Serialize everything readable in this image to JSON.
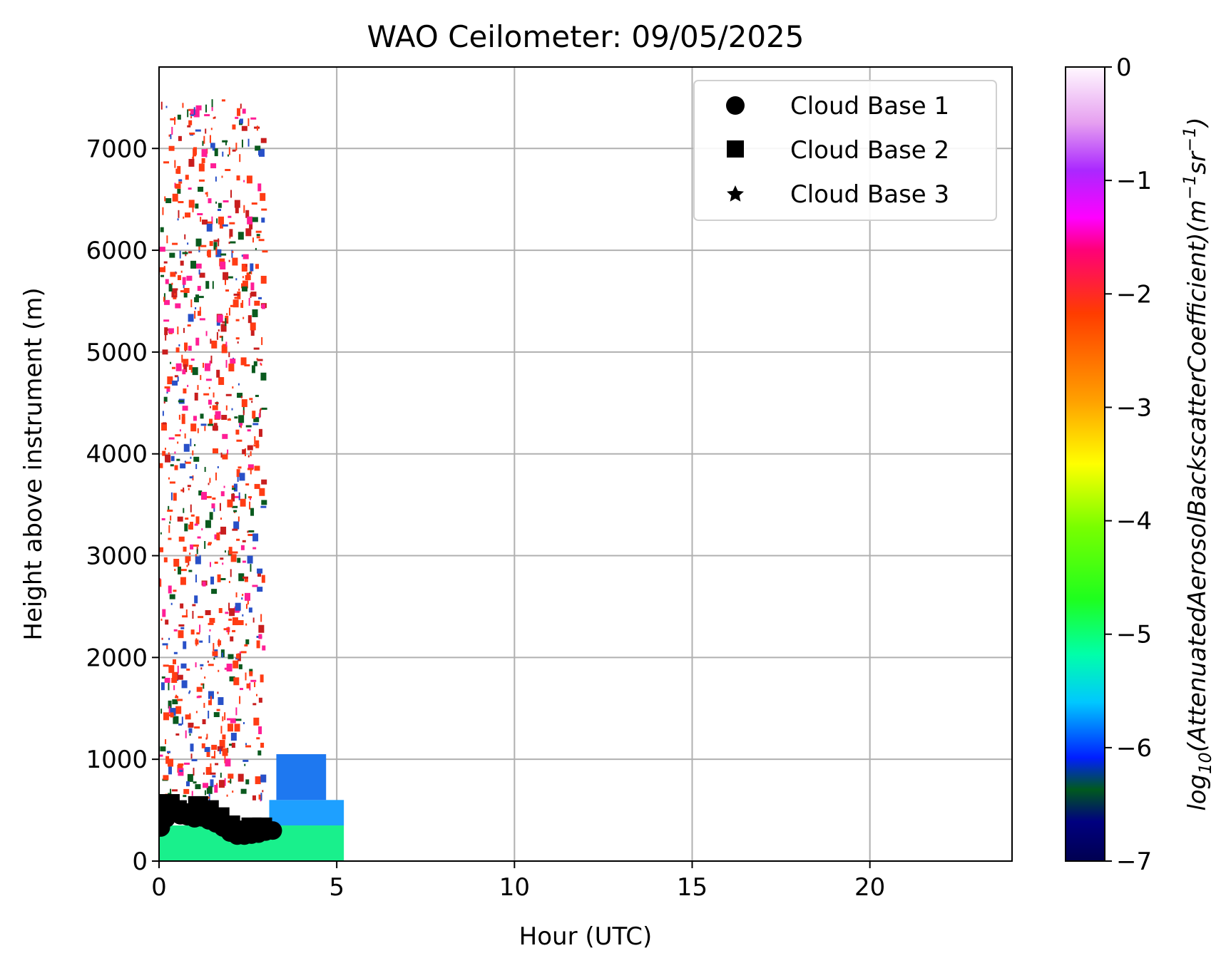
{
  "chart_data": {
    "type": "heatmap",
    "title": "WAO Ceilometer: 09/05/2025",
    "xlabel": "Hour (UTC)",
    "ylabel": "Height above instrument (m)",
    "xlim": [
      0,
      24
    ],
    "ylim": [
      0,
      7800
    ],
    "x_ticks": [
      0,
      5,
      10,
      15,
      20
    ],
    "y_ticks": [
      0,
      1000,
      2000,
      3000,
      4000,
      5000,
      6000,
      7000
    ],
    "grid": true,
    "legend": {
      "placement": "top-right",
      "entries": [
        {
          "label": "Cloud Base 1",
          "marker": "circle"
        },
        {
          "label": "Cloud Base 2",
          "marker": "square"
        },
        {
          "label": "Cloud Base 3",
          "marker": "star"
        }
      ]
    },
    "colorbar": {
      "label_base": "log",
      "label_sub": "10",
      "label_main": "(AttenuatedAerosolBackscatterCoefficient)(m",
      "label_sup1": "−1",
      "label_mid": "sr",
      "label_sup2": "−1",
      "label_end": ")",
      "range": [
        -7,
        0
      ],
      "ticks": [
        0,
        -1,
        -2,
        -3,
        -4,
        -5,
        -6,
        -7
      ],
      "tick_labels": [
        "0",
        "−1",
        "−2",
        "−3",
        "−4",
        "−5",
        "−6",
        "−7"
      ]
    },
    "backscatter_regions": [
      {
        "description": "near-surface aerosol",
        "x_range": [
          0,
          5.2
        ],
        "height_range": [
          0,
          350
        ],
        "log10_value": -5.0
      },
      {
        "description": "boundary layer",
        "x_range": [
          3.1,
          5.2
        ],
        "height_range": [
          350,
          600
        ],
        "log10_value": -5.8
      },
      {
        "description": "elevated aerosol",
        "x_range": [
          3.3,
          4.7
        ],
        "height_range": [
          600,
          1050
        ],
        "log10_value": -6.1
      },
      {
        "description": "noise above cloud",
        "x_range": [
          0,
          2.9
        ],
        "height_range": [
          600,
          7500
        ],
        "log10_value": -2.0
      }
    ],
    "cloud_base_1": {
      "x": [
        0.05,
        0.2,
        0.4,
        0.6,
        0.8,
        1.0,
        1.2,
        1.4,
        1.6,
        1.8,
        2.0,
        2.2,
        2.4,
        2.6,
        2.8,
        3.0,
        3.2
      ],
      "y": [
        330,
        420,
        480,
        450,
        440,
        420,
        430,
        400,
        370,
        330,
        280,
        250,
        250,
        260,
        270,
        290,
        300
      ]
    },
    "cloud_base_2": {
      "x": [
        0.1,
        0.3,
        0.5,
        0.8,
        1.1,
        1.4,
        1.7,
        2.0,
        2.3,
        2.6,
        2.9
      ],
      "y": [
        540,
        560,
        500,
        470,
        540,
        500,
        430,
        350,
        300,
        330,
        330
      ]
    },
    "cloud_base_3": {
      "x": [],
      "y": []
    }
  },
  "colors": {
    "near_surface": "#19f08c",
    "boundary_layer": "#1ea0ff",
    "elevated": "#1e78f0",
    "noise": "#ff3c14",
    "cloud_markers": "#000000",
    "grid": "#b0b0b0"
  }
}
